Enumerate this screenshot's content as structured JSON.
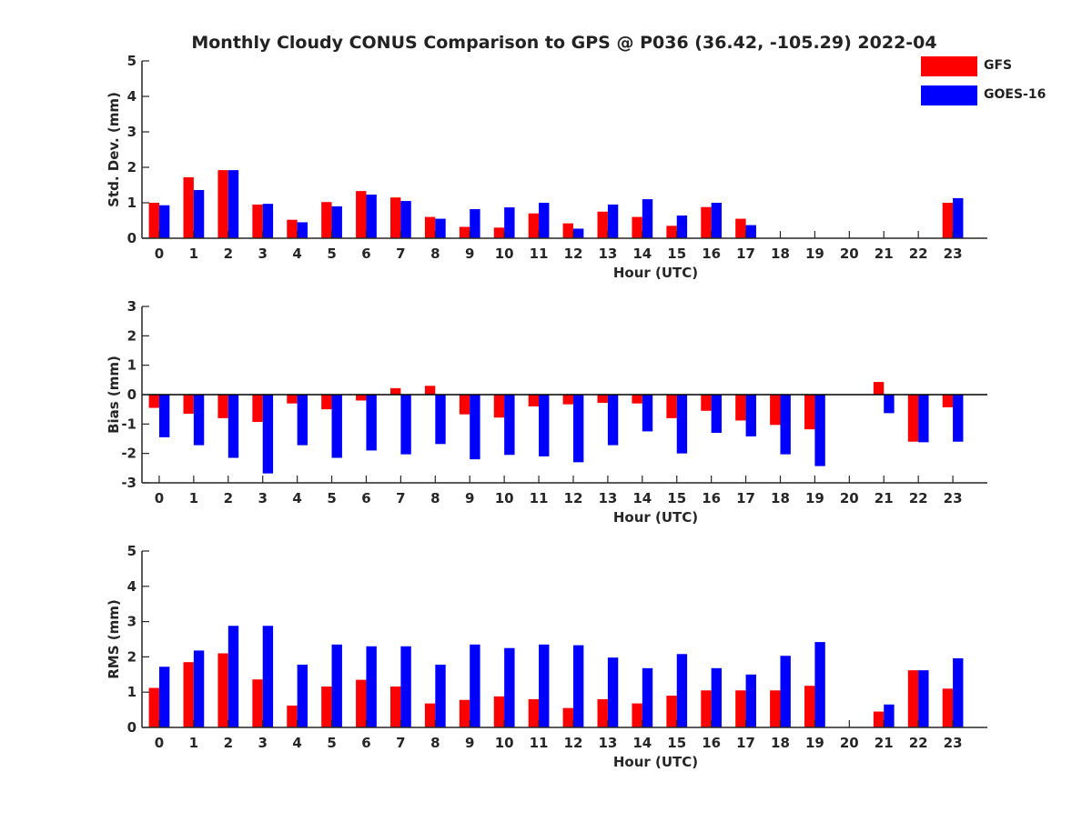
{
  "title": "Monthly Cloudy CONUS Comparison to GPS @ P036 (36.42, -105.29) 2022-04",
  "legend": [
    {
      "name": "GFS",
      "color": "#ff0000"
    },
    {
      "name": "GOES-16",
      "color": "#0000ff"
    }
  ],
  "chart_data": [
    {
      "type": "bar",
      "title": "",
      "xlabel": "Hour (UTC)",
      "ylabel": "Std. Dev. (mm)",
      "ylim": [
        0,
        5
      ],
      "yticks": [
        0,
        1,
        2,
        3,
        4,
        5
      ],
      "categories": [
        "0",
        "1",
        "2",
        "3",
        "4",
        "5",
        "6",
        "7",
        "8",
        "9",
        "10",
        "11",
        "12",
        "13",
        "14",
        "15",
        "16",
        "17",
        "18",
        "19",
        "20",
        "21",
        "22",
        "23"
      ],
      "series": [
        {
          "name": "GFS",
          "color": "#ff0000",
          "values": [
            1.0,
            1.72,
            1.92,
            0.95,
            0.52,
            1.02,
            1.33,
            1.15,
            0.6,
            0.32,
            0.3,
            0.7,
            0.42,
            0.75,
            0.6,
            0.35,
            0.88,
            0.55,
            null,
            null,
            null,
            null,
            null,
            1.0
          ]
        },
        {
          "name": "GOES-16",
          "color": "#0000ff",
          "values": [
            0.93,
            1.36,
            1.92,
            0.97,
            0.45,
            0.9,
            1.23,
            1.05,
            0.55,
            0.82,
            0.87,
            1.0,
            0.27,
            0.95,
            1.1,
            0.64,
            1.0,
            0.37,
            null,
            null,
            null,
            null,
            null,
            1.13
          ]
        }
      ]
    },
    {
      "type": "bar",
      "title": "",
      "xlabel": "Hour (UTC)",
      "ylabel": "Bias (mm)",
      "ylim": [
        -3,
        3
      ],
      "yticks": [
        -3,
        -2,
        -1,
        0,
        1,
        2,
        3
      ],
      "categories": [
        "0",
        "1",
        "2",
        "3",
        "4",
        "5",
        "6",
        "7",
        "8",
        "9",
        "10",
        "11",
        "12",
        "13",
        "14",
        "15",
        "16",
        "17",
        "18",
        "19",
        "20",
        "21",
        "22",
        "23"
      ],
      "series": [
        {
          "name": "GFS",
          "color": "#ff0000",
          "values": [
            -0.45,
            -0.65,
            -0.8,
            -0.93,
            -0.3,
            -0.5,
            -0.2,
            0.22,
            0.3,
            -0.67,
            -0.78,
            -0.4,
            -0.33,
            -0.28,
            -0.3,
            -0.8,
            -0.55,
            -0.88,
            -1.03,
            -1.18,
            null,
            0.43,
            -1.6,
            -0.43
          ]
        },
        {
          "name": "GOES-16",
          "color": "#0000ff",
          "values": [
            -1.45,
            -1.72,
            -2.15,
            -2.68,
            -1.72,
            -2.15,
            -1.9,
            -2.03,
            -1.68,
            -2.2,
            -2.05,
            -2.1,
            -2.3,
            -1.72,
            -1.25,
            -2.0,
            -1.3,
            -1.42,
            -2.03,
            -2.43,
            null,
            -0.63,
            -1.62,
            -1.6
          ]
        }
      ]
    },
    {
      "type": "bar",
      "title": "",
      "xlabel": "Hour (UTC)",
      "ylabel": "RMS (mm)",
      "ylim": [
        0,
        5
      ],
      "yticks": [
        0,
        1,
        2,
        3,
        4,
        5
      ],
      "categories": [
        "0",
        "1",
        "2",
        "3",
        "4",
        "5",
        "6",
        "7",
        "8",
        "9",
        "10",
        "11",
        "12",
        "13",
        "14",
        "15",
        "16",
        "17",
        "18",
        "19",
        "20",
        "21",
        "22",
        "23"
      ],
      "series": [
        {
          "name": "GFS",
          "color": "#ff0000",
          "values": [
            1.12,
            1.85,
            2.1,
            1.36,
            0.62,
            1.16,
            1.35,
            1.16,
            0.68,
            0.78,
            0.88,
            0.8,
            0.55,
            0.8,
            0.68,
            0.9,
            1.05,
            1.05,
            1.05,
            1.18,
            null,
            0.45,
            1.62,
            1.1
          ]
        },
        {
          "name": "GOES-16",
          "color": "#0000ff",
          "values": [
            1.72,
            2.18,
            2.88,
            2.88,
            1.78,
            2.35,
            2.3,
            2.3,
            1.78,
            2.35,
            2.25,
            2.35,
            2.33,
            1.98,
            1.68,
            2.08,
            1.68,
            1.5,
            2.03,
            2.42,
            null,
            0.65,
            1.62,
            1.96
          ]
        }
      ]
    }
  ]
}
